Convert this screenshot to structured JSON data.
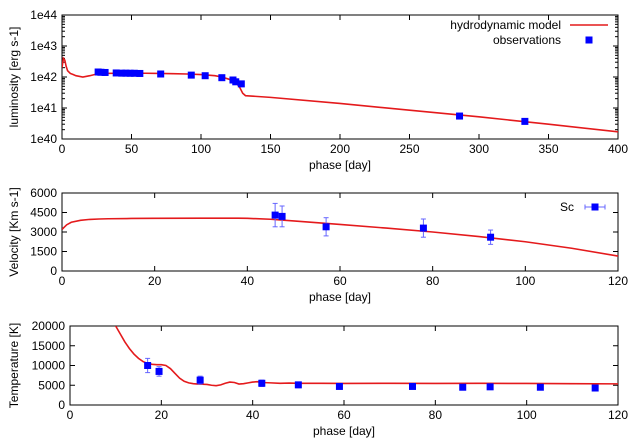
{
  "chart_data": [
    {
      "type": "line",
      "xlabel": "phase [day]",
      "ylabel": "luminosity [erg s-1]",
      "xlim": [
        0,
        400
      ],
      "ylim": [
        1e+40,
        1e+44
      ],
      "yscale": "log",
      "xticks": [
        0,
        50,
        100,
        150,
        200,
        250,
        300,
        350,
        400
      ],
      "yticks": [
        1e+40,
        1e+41,
        1e+42,
        1e+43,
        1e+44
      ],
      "ytick_labels": [
        "1e40",
        "1e41",
        "1e42",
        "1e43",
        "1e44"
      ],
      "legend_position": "top-right",
      "series": [
        {
          "name": "hydrodynamic model",
          "kind": "line",
          "color": "#e41a1c",
          "x": [
            0,
            1,
            2,
            3,
            4,
            6,
            8,
            10,
            15,
            20,
            25,
            30,
            40,
            50,
            60,
            70,
            80,
            90,
            100,
            110,
            115,
            120,
            123,
            126,
            128,
            130,
            132,
            150,
            200,
            250,
            300,
            350,
            400
          ],
          "y": [
            2e+42,
            4e+42,
            3.5e+42,
            2.2e+42,
            1.6e+42,
            1.3e+42,
            1.2e+42,
            1.1e+42,
            1e+42,
            1.1e+42,
            1.25e+42,
            1.3e+42,
            1.32e+42,
            1.33e+42,
            1.32e+42,
            1.3e+42,
            1.28e+42,
            1.25e+42,
            1.2e+42,
            1.1e+42,
            1e+42,
            8.5e+41,
            7.5e+41,
            6e+41,
            4.5e+41,
            3e+41,
            2.5e+41,
            2.2e+41,
            1.4e+41,
            8.5e+40,
            5.2e+40,
            3e+40,
            1.7e+40
          ]
        },
        {
          "name": "observations",
          "kind": "points",
          "color": "#0000ff",
          "x": [
            26,
            28,
            31,
            39,
            43,
            46,
            49,
            52,
            56,
            71,
            93,
            103,
            115,
            123,
            125,
            129,
            286,
            333
          ],
          "y": [
            1.45e+42,
            1.42e+42,
            1.4e+42,
            1.35e+42,
            1.33e+42,
            1.33e+42,
            1.32e+42,
            1.32e+42,
            1.3e+42,
            1.25e+42,
            1.15e+42,
            1.1e+42,
            9.5e+41,
            8e+41,
            7e+41,
            6e+41,
            5.5e+40,
            3.7e+40
          ]
        }
      ]
    },
    {
      "type": "line",
      "xlabel": "phase [day]",
      "ylabel": "Velocity [Km s-1]",
      "xlim": [
        0,
        120
      ],
      "ylim": [
        0,
        6000
      ],
      "xticks": [
        0,
        20,
        40,
        60,
        80,
        100,
        120
      ],
      "yticks": [
        0,
        1500,
        3000,
        4500,
        6000
      ],
      "legend_position": "top-right",
      "series": [
        {
          "name": "",
          "kind": "line",
          "color": "#e41a1c",
          "x": [
            0,
            1,
            2,
            4,
            6,
            8,
            10,
            15,
            20,
            30,
            38,
            40,
            45,
            50,
            60,
            70,
            80,
            90,
            100,
            110,
            120
          ],
          "y": [
            3200,
            3550,
            3750,
            3900,
            3970,
            4000,
            4020,
            4040,
            4050,
            4060,
            4060,
            4050,
            3980,
            3850,
            3580,
            3300,
            3000,
            2650,
            2250,
            1750,
            1150
          ]
        },
        {
          "name": "Sc",
          "kind": "points",
          "color": "#0000ff",
          "x": [
            46,
            47.5,
            57,
            78,
            92.5
          ],
          "y": [
            4300,
            4200,
            3400,
            3300,
            2600
          ],
          "yerr": [
            900,
            800,
            700,
            700,
            550
          ],
          "xerr": [
            0,
            0,
            0,
            0,
            0
          ]
        }
      ]
    },
    {
      "type": "line",
      "xlabel": "phase [day]",
      "ylabel": "Temperature [K]",
      "xlim": [
        0,
        120
      ],
      "ylim": [
        0,
        20000
      ],
      "xticks": [
        0,
        20,
        40,
        60,
        80,
        100,
        120
      ],
      "yticks": [
        0,
        5000,
        10000,
        15000,
        20000
      ],
      "series": [
        {
          "name": "",
          "kind": "line",
          "color": "#e41a1c",
          "x": [
            10,
            11,
            12,
            13,
            14,
            15,
            16,
            17,
            18,
            19,
            20,
            21,
            22,
            23,
            24,
            25,
            26,
            27,
            28,
            29,
            30,
            31,
            32,
            33,
            34,
            35,
            36,
            37,
            38,
            39,
            40,
            41,
            42,
            44,
            46,
            48,
            50,
            55,
            60,
            70,
            80,
            90,
            100,
            110,
            120
          ],
          "y": [
            20000,
            18000,
            16000,
            14300,
            12900,
            11800,
            11000,
            10500,
            10300,
            10200,
            10200,
            10000,
            9200,
            8000,
            6800,
            6000,
            5600,
            5400,
            5300,
            5250,
            5200,
            5000,
            4900,
            5100,
            5500,
            5800,
            5700,
            5300,
            5400,
            5600,
            5800,
            5900,
            5700,
            5600,
            5500,
            5550,
            5500,
            5500,
            5450,
            5500,
            5450,
            5500,
            5450,
            5400,
            5350
          ]
        },
        {
          "name": "",
          "kind": "points",
          "color": "#0000ff",
          "x": [
            17,
            19.5,
            28.5,
            42,
            50,
            59,
            75,
            86,
            92,
            103,
            115
          ],
          "y": [
            10000,
            8500,
            6300,
            5500,
            5100,
            4700,
            4700,
            4500,
            4600,
            4500,
            4300
          ],
          "yerr": [
            1800,
            1200,
            1000,
            800,
            700,
            600,
            600,
            600,
            600,
            600,
            600
          ]
        }
      ]
    }
  ]
}
